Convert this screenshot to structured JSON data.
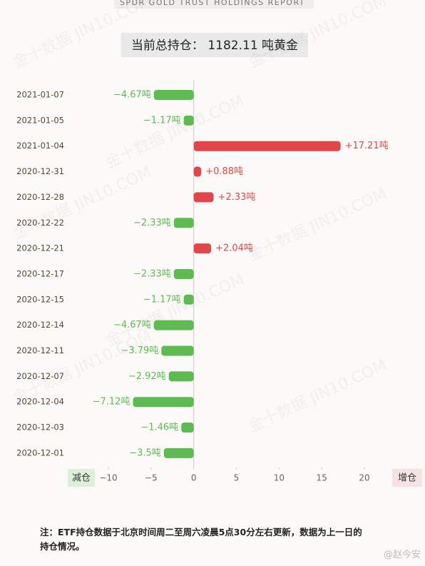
{
  "chart_data": {
    "type": "hbar",
    "title": "SPDR GOLD TRUST HOLDINGS REPORT",
    "subtitle": "当前总持仓： 1182.11 吨黄金",
    "watermark": "金十数据 JIN10.COM",
    "categories": [
      "2021-01-07",
      "2021-01-05",
      "2021-01-04",
      "2020-12-31",
      "2020-12-28",
      "2020-12-22",
      "2020-12-21",
      "2020-12-17",
      "2020-12-15",
      "2020-12-14",
      "2020-12-11",
      "2020-12-07",
      "2020-12-04",
      "2020-12-03",
      "2020-12-01"
    ],
    "values": [
      -4.67,
      -1.17,
      17.21,
      0.88,
      2.33,
      -2.33,
      2.04,
      -2.33,
      -1.17,
      -4.67,
      -3.79,
      -2.92,
      -7.12,
      -1.46,
      -3.5
    ],
    "value_labels": [
      "−4.67吨",
      "−1.17吨",
      "+17.21吨",
      "+0.88吨",
      "+2.33吨",
      "−2.33吨",
      "+2.04吨",
      "−2.33吨",
      "−1.17吨",
      "−4.67吨",
      "−3.79吨",
      "−2.92吨",
      "−7.12吨",
      "−1.46吨",
      "−3.5吨"
    ],
    "positive_color": "#e0464a",
    "negative_color": "#5dbb52",
    "xlim": [
      -10,
      20
    ],
    "xticks": [
      {
        "value": -10,
        "label": "−10"
      },
      {
        "value": -5,
        "label": "−5"
      },
      0,
      5,
      10,
      15,
      20
    ],
    "negative_label": "减仓",
    "positive_label": "增仓",
    "note": "注：ETF持仓数据于北京时间周二至周六凌晨5点30分左右更新，数据为上一日的持仓情况。",
    "credit": "@赵今安"
  }
}
